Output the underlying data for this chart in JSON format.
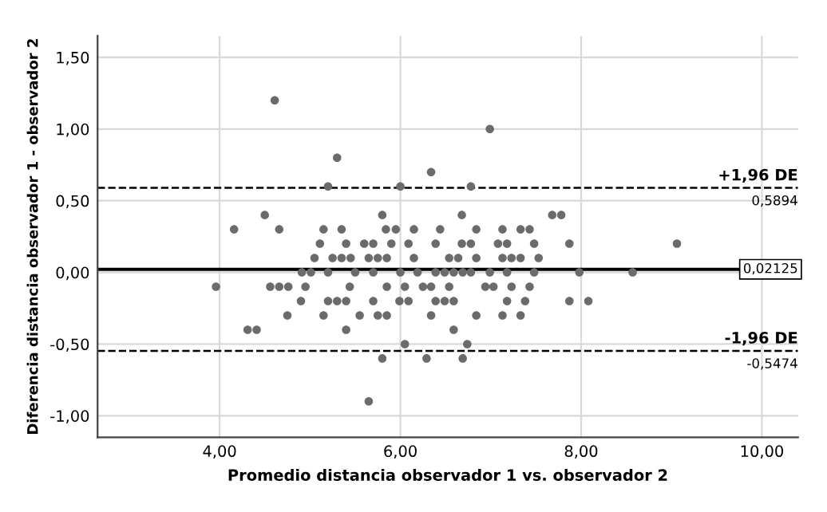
{
  "chart_data": {
    "type": "scatter",
    "xlabel": "Promedio distancia observador 1 vs. observador 2",
    "ylabel": "Diferencia distancia observador 1 - observador 2",
    "xlim": [
      2.65,
      10.4
    ],
    "ylim": [
      -1.15,
      1.65
    ],
    "xticks": [
      {
        "value": 4,
        "label": "4,00"
      },
      {
        "value": 6,
        "label": "6,00"
      },
      {
        "value": 8,
        "label": "8,00"
      },
      {
        "value": 10,
        "label": "10,00"
      }
    ],
    "yticks": [
      {
        "value": -1,
        "label": "-1,00"
      },
      {
        "value": -0.5,
        "label": "-0,50"
      },
      {
        "value": 0,
        "label": "0,00"
      },
      {
        "value": 0.5,
        "label": "0,50"
      },
      {
        "value": 1,
        "label": "1,00"
      },
      {
        "value": 1.5,
        "label": "1,50"
      }
    ],
    "grid": true,
    "marker": "circle",
    "ref_lines": [
      {
        "axis": "y",
        "value": 0.5894,
        "label": "+1,96 DE",
        "line_style": "dashed",
        "color": "#000000"
      },
      {
        "axis": "y",
        "value": 0.02125,
        "label": "0,02125",
        "line_style": "solid",
        "color": "#000000"
      },
      {
        "axis": "y",
        "value": -0.5474,
        "label": "-1,96 DE",
        "line_style": "dashed",
        "color": "#000000"
      }
    ],
    "annotations": [
      {
        "text": "0,5894",
        "y": 0.5894
      },
      {
        "text": "-0,5474",
        "y": -0.5474
      }
    ],
    "series": [
      {
        "color": "#6b6b6b",
        "x": [
          4.61,
          6.99,
          5.3,
          6.34,
          5.2,
          6.0,
          6.78,
          4.5,
          5.8,
          6.68,
          7.68,
          7.78,
          4.16,
          4.66,
          5.15,
          5.35,
          5.84,
          5.95,
          6.15,
          6.44,
          6.84,
          7.13,
          7.33,
          7.43,
          5.11,
          5.4,
          5.6,
          5.7,
          5.9,
          6.09,
          6.39,
          6.68,
          6.78,
          7.08,
          7.18,
          7.48,
          7.87,
          9.06,
          5.05,
          5.25,
          5.35,
          5.45,
          5.65,
          5.75,
          5.85,
          6.15,
          6.54,
          6.64,
          6.84,
          7.13,
          7.23,
          7.33,
          7.53,
          4.91,
          5.01,
          5.2,
          5.5,
          5.7,
          6.0,
          6.19,
          6.39,
          6.49,
          6.59,
          6.69,
          6.78,
          6.99,
          7.18,
          7.48,
          7.98,
          8.57,
          3.96,
          4.56,
          4.66,
          4.76,
          4.95,
          5.44,
          5.85,
          6.05,
          6.25,
          6.34,
          6.54,
          6.94,
          7.03,
          7.23,
          7.43,
          4.9,
          5.2,
          5.3,
          5.4,
          5.7,
          5.99,
          6.09,
          6.39,
          6.49,
          6.59,
          7.18,
          7.38,
          7.87,
          8.08,
          4.75,
          5.15,
          5.55,
          5.75,
          5.85,
          6.34,
          6.84,
          7.13,
          7.33,
          4.31,
          4.41,
          5.4,
          6.59,
          6.05,
          6.74,
          5.8,
          6.29,
          6.69,
          5.65
        ],
        "values": [
          1.2,
          1.0,
          0.8,
          0.7,
          0.6,
          0.6,
          0.6,
          0.4,
          0.4,
          0.4,
          0.4,
          0.4,
          0.3,
          0.3,
          0.3,
          0.3,
          0.3,
          0.3,
          0.3,
          0.3,
          0.3,
          0.3,
          0.3,
          0.3,
          0.2,
          0.2,
          0.2,
          0.2,
          0.2,
          0.2,
          0.2,
          0.2,
          0.2,
          0.2,
          0.2,
          0.2,
          0.2,
          0.2,
          0.1,
          0.1,
          0.1,
          0.1,
          0.1,
          0.1,
          0.1,
          0.1,
          0.1,
          0.1,
          0.1,
          0.1,
          0.1,
          0.1,
          0.1,
          0.0,
          0.0,
          0.0,
          0.0,
          0.0,
          0.0,
          0.0,
          0.0,
          0.0,
          0.0,
          0.0,
          0.0,
          0.0,
          0.0,
          0.0,
          0.0,
          0.0,
          -0.1,
          -0.1,
          -0.1,
          -0.1,
          -0.1,
          -0.1,
          -0.1,
          -0.1,
          -0.1,
          -0.1,
          -0.1,
          -0.1,
          -0.1,
          -0.1,
          -0.1,
          -0.2,
          -0.2,
          -0.2,
          -0.2,
          -0.2,
          -0.2,
          -0.2,
          -0.2,
          -0.2,
          -0.2,
          -0.2,
          -0.2,
          -0.2,
          -0.2,
          -0.3,
          -0.3,
          -0.3,
          -0.3,
          -0.3,
          -0.3,
          -0.3,
          -0.3,
          -0.3,
          -0.4,
          -0.4,
          -0.4,
          -0.4,
          -0.5,
          -0.5,
          -0.6,
          -0.6,
          -0.6,
          -0.9
        ]
      }
    ]
  }
}
